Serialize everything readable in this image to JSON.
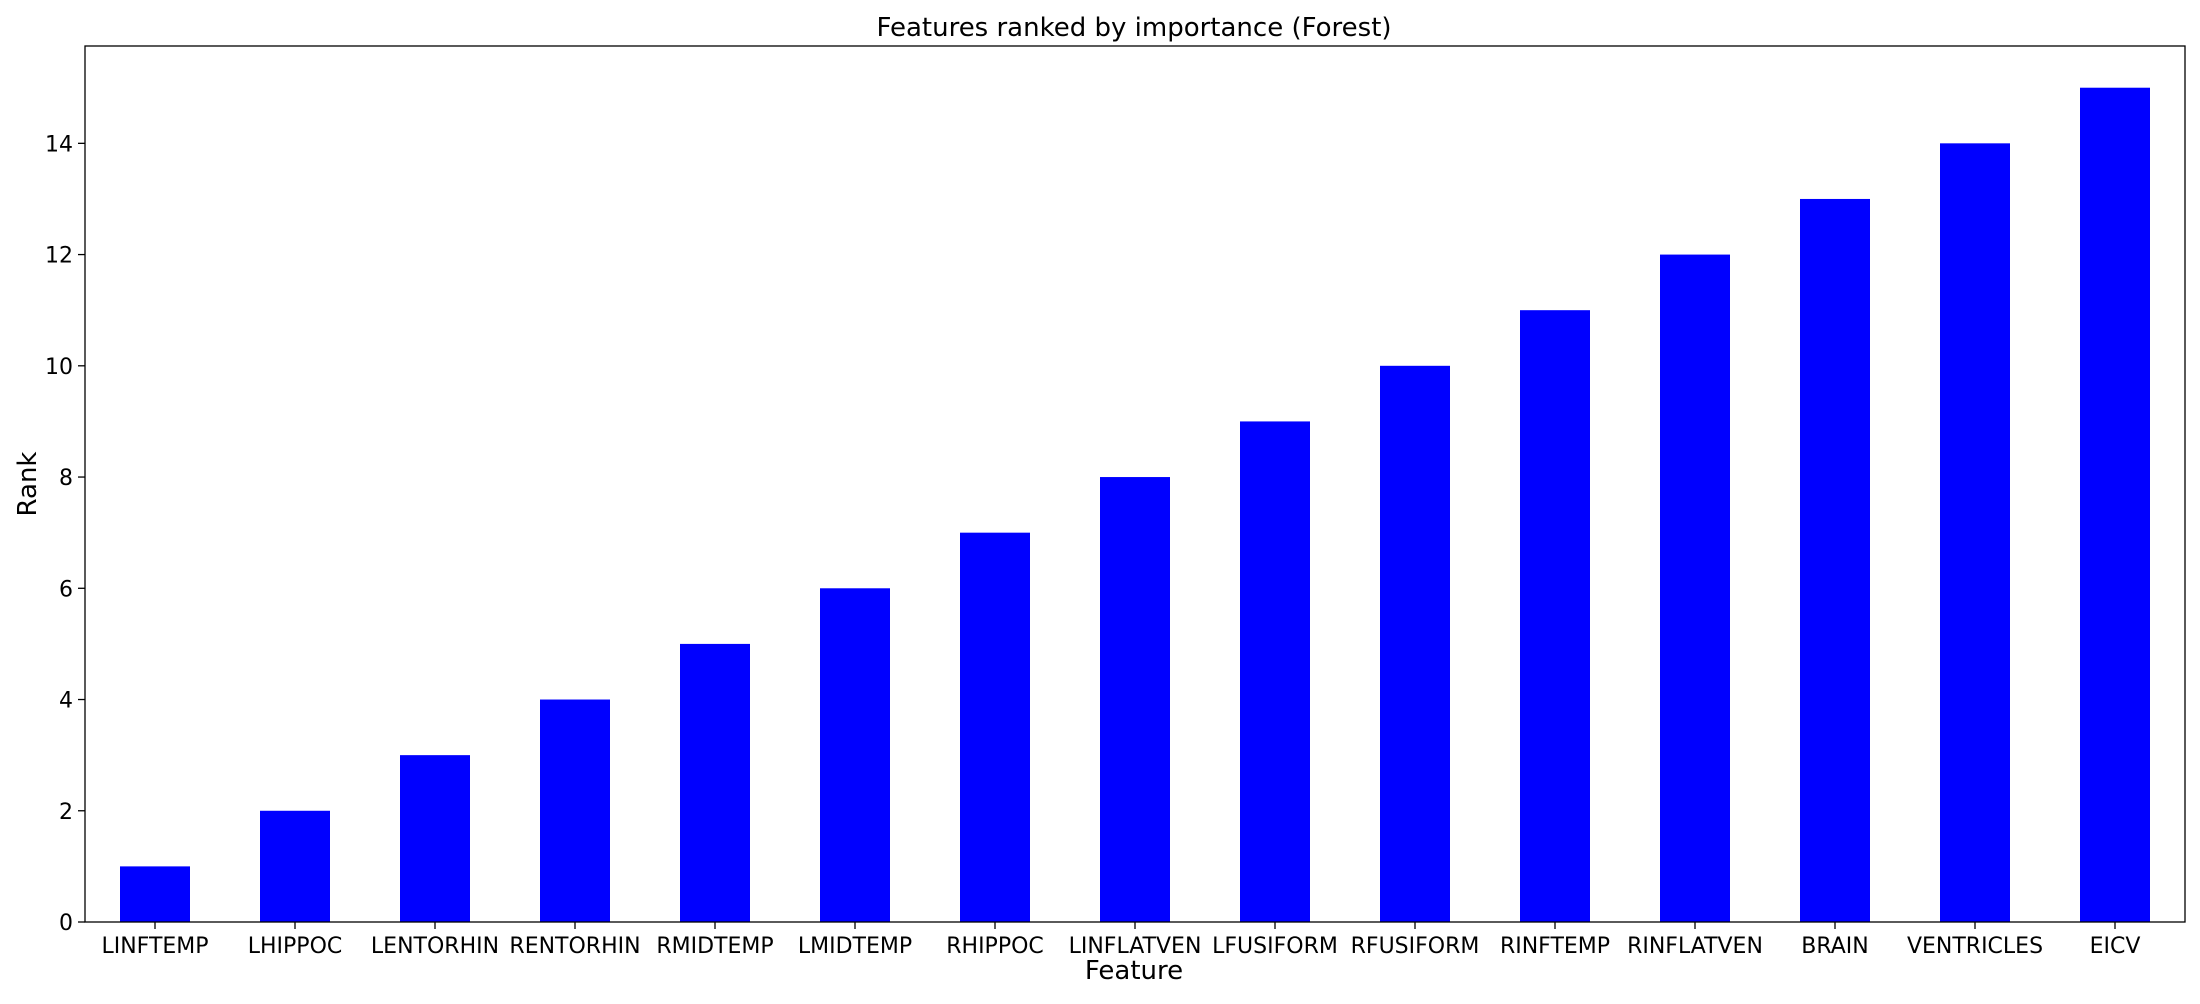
{
  "chart_data": {
    "type": "bar",
    "title": "Features ranked by importance (Forest)",
    "xlabel": "Feature",
    "ylabel": "Rank",
    "categories": [
      "LINFTEMP",
      "LHIPPOC",
      "LENTORHIN",
      "RENTORHIN",
      "RMIDTEMP",
      "LMIDTEMP",
      "RHIPPOC",
      "LINFLATVEN",
      "LFUSIFORM",
      "RFUSIFORM",
      "RINFTEMP",
      "RINFLATVEN",
      "BRAIN",
      "VENTRICLES",
      "EICV"
    ],
    "values": [
      1,
      2,
      3,
      4,
      5,
      6,
      7,
      8,
      9,
      10,
      11,
      12,
      13,
      14,
      15
    ],
    "ylim": [
      0,
      15.75
    ],
    "yticks": [
      0,
      2,
      4,
      6,
      8,
      10,
      12,
      14
    ],
    "grid": false,
    "legend": "none",
    "bar_color": "#0000ff"
  }
}
